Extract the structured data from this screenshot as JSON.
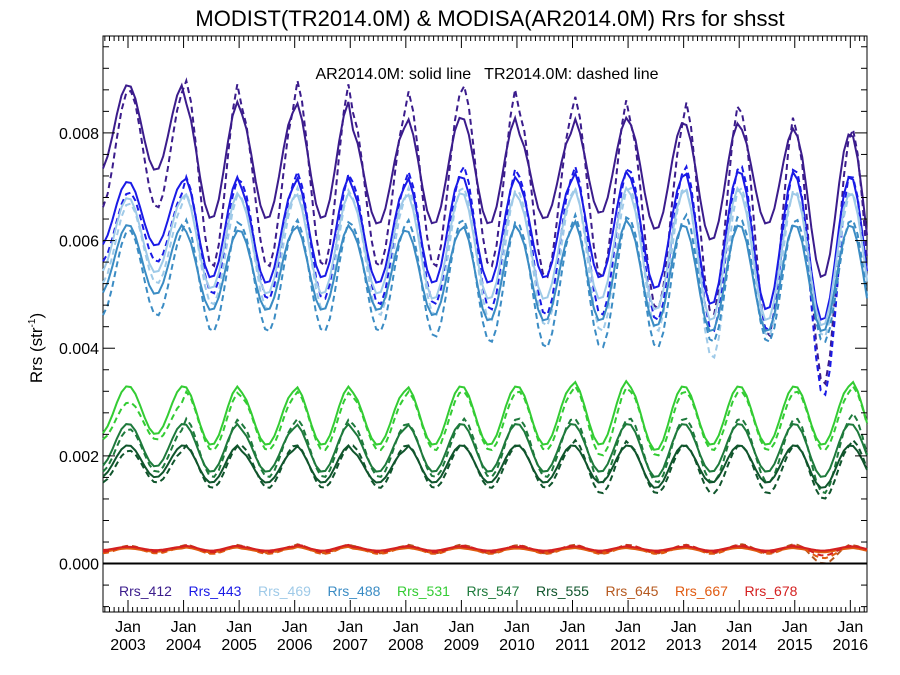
{
  "chart_data": {
    "type": "line",
    "title": "MODIST(TR2014.0M) & MODISA(AR2014.0M)  Rrs for shsst",
    "annotation": "AR2014.0M: solid line   TR2014.0M: dashed line",
    "ylabel": "Rrs (str",
    "ylabel_sup": "-1",
    "ylabel_close": ")",
    "ylim": [
      -0.0009,
      0.0098
    ],
    "xlim": [
      2002.55,
      2016.3
    ],
    "y_ticks": [
      "0.000",
      "0.002",
      "0.004",
      "0.006",
      "0.008"
    ],
    "x_ticks": [
      {
        "month": "Jan",
        "year": "2003"
      },
      {
        "month": "Jan",
        "year": "2004"
      },
      {
        "month": "Jan",
        "year": "2005"
      },
      {
        "month": "Jan",
        "year": "2006"
      },
      {
        "month": "Jan",
        "year": "2007"
      },
      {
        "month": "Jan",
        "year": "2008"
      },
      {
        "month": "Jan",
        "year": "2009"
      },
      {
        "month": "Jan",
        "year": "2010"
      },
      {
        "month": "Jan",
        "year": "2011"
      },
      {
        "month": "Jan",
        "year": "2012"
      },
      {
        "month": "Jan",
        "year": "2013"
      },
      {
        "month": "Jan",
        "year": "2014"
      },
      {
        "month": "Jan",
        "year": "2015"
      },
      {
        "month": "Jan",
        "year": "2016"
      }
    ],
    "series": [
      {
        "name": "Rrs_412",
        "color": "#3b1c8c",
        "aqua_peaks": [
          0.0089,
          0.0086,
          0.0084,
          0.0086,
          0.0081,
          0.0083,
          0.0083,
          0.008,
          0.0083,
          0.0082,
          0.0082,
          0.0081,
          0.008,
          0.008
        ],
        "aqua_troughs": [
          0.0073,
          0.0064,
          0.0064,
          0.0064,
          0.0063,
          0.0063,
          0.0063,
          0.0064,
          0.0065,
          0.0062,
          0.006,
          0.0063,
          0.0053,
          0.0051
        ],
        "terra_peaks": [
          0.0088,
          0.009,
          0.0085,
          0.009,
          0.0084,
          0.0088,
          0.0089,
          0.0084,
          0.0087,
          0.0082,
          0.0086,
          0.0084,
          0.008,
          0.0081
        ],
        "terra_troughs": [
          0.0066,
          0.0055,
          0.0055,
          0.0055,
          0.0055,
          0.0055,
          0.0055,
          0.0053,
          0.0053,
          0.0047,
          0.0046,
          0.0042,
          0.0033,
          0.004
        ]
      },
      {
        "name": "Rrs_443",
        "color": "#1a1ae6",
        "aqua_peaks": [
          0.0071,
          0.0072,
          0.007,
          0.0072,
          0.007,
          0.0072,
          0.0072,
          0.0071,
          0.0073,
          0.0072,
          0.0073,
          0.0073,
          0.0072,
          0.0072
        ],
        "aqua_troughs": [
          0.0059,
          0.0053,
          0.0052,
          0.0053,
          0.0052,
          0.0052,
          0.0052,
          0.0053,
          0.0053,
          0.0051,
          0.0048,
          0.0047,
          0.0045,
          0.0045
        ],
        "terra_peaks": [
          0.0069,
          0.0072,
          0.0071,
          0.0073,
          0.0071,
          0.0073,
          0.0074,
          0.0072,
          0.0074,
          0.0073,
          0.0074,
          0.0074,
          0.0073,
          0.0072
        ],
        "terra_troughs": [
          0.0056,
          0.005,
          0.0049,
          0.0049,
          0.0048,
          0.0048,
          0.0047,
          0.0046,
          0.0046,
          0.0045,
          0.0043,
          0.0043,
          0.0031,
          0.0039
        ]
      },
      {
        "name": "Rrs_469",
        "color": "#9fcae8",
        "aqua_peaks": [
          0.0068,
          0.0069,
          0.0068,
          0.0069,
          0.0068,
          0.0069,
          0.0069,
          0.0068,
          0.007,
          0.0069,
          0.007,
          0.0069,
          0.0069,
          0.0069
        ],
        "aqua_troughs": [
          0.0054,
          0.0051,
          0.005,
          0.005,
          0.005,
          0.0049,
          0.0049,
          0.0049,
          0.0049,
          0.0047,
          0.0045,
          0.0045,
          0.0044,
          0.0044
        ],
        "terra_peaks": [
          0.0067,
          0.0069,
          0.0068,
          0.007,
          0.0068,
          0.007,
          0.007,
          0.0069,
          0.007,
          0.007,
          0.007,
          0.007,
          0.0069,
          0.0069
        ],
        "terra_troughs": [
          0.0052,
          0.0048,
          0.0047,
          0.0047,
          0.0046,
          0.0046,
          0.0045,
          0.0044,
          0.0043,
          0.0043,
          0.0038,
          0.0042,
          0.0042,
          0.0041
        ]
      },
      {
        "name": "Rrs_488",
        "color": "#3b8cc4",
        "aqua_peaks": [
          0.0063,
          0.0062,
          0.0062,
          0.0063,
          0.0062,
          0.0062,
          0.0063,
          0.0062,
          0.0064,
          0.0063,
          0.0063,
          0.0063,
          0.0063,
          0.0063
        ],
        "aqua_troughs": [
          0.005,
          0.0047,
          0.0047,
          0.0047,
          0.0047,
          0.0046,
          0.0045,
          0.0045,
          0.0045,
          0.0044,
          0.0043,
          0.0043,
          0.0043,
          0.0042
        ],
        "terra_peaks": [
          0.0062,
          0.0064,
          0.0063,
          0.0064,
          0.0063,
          0.0064,
          0.0064,
          0.0063,
          0.0065,
          0.0064,
          0.0065,
          0.0064,
          0.0064,
          0.0064
        ],
        "terra_troughs": [
          0.0046,
          0.0043,
          0.0043,
          0.0043,
          0.0043,
          0.0042,
          0.0041,
          0.004,
          0.004,
          0.004,
          0.0041,
          0.0041,
          0.0041,
          0.004
        ]
      },
      {
        "name": "Rrs_531",
        "color": "#33cc33",
        "aqua_peaks": [
          0.0033,
          0.0033,
          0.0032,
          0.0033,
          0.0032,
          0.0033,
          0.0033,
          0.0033,
          0.0034,
          0.0033,
          0.0033,
          0.0033,
          0.0033,
          0.0034
        ],
        "aqua_troughs": [
          0.0024,
          0.0022,
          0.0022,
          0.0022,
          0.0022,
          0.0022,
          0.0022,
          0.0022,
          0.0022,
          0.0021,
          0.0022,
          0.0022,
          0.0022,
          0.0022
        ],
        "terra_peaks": [
          0.003,
          0.0032,
          0.0031,
          0.0032,
          0.0031,
          0.0032,
          0.0032,
          0.0032,
          0.0033,
          0.0032,
          0.0032,
          0.0032,
          0.0032,
          0.0033
        ],
        "terra_troughs": [
          0.0023,
          0.0021,
          0.0021,
          0.0021,
          0.0021,
          0.0021,
          0.0021,
          0.0021,
          0.002,
          0.002,
          0.0021,
          0.0021,
          0.0021,
          0.0021
        ]
      },
      {
        "name": "Rrs_547",
        "color": "#1e7a3c",
        "aqua_peaks": [
          0.0026,
          0.0026,
          0.0025,
          0.0026,
          0.0025,
          0.0026,
          0.0026,
          0.0026,
          0.0026,
          0.0026,
          0.0026,
          0.0026,
          0.0026,
          0.0026
        ],
        "aqua_troughs": [
          0.0018,
          0.0017,
          0.0017,
          0.0017,
          0.0017,
          0.0017,
          0.0017,
          0.0017,
          0.0017,
          0.0016,
          0.0017,
          0.0017,
          0.0016,
          0.0017
        ],
        "terra_peaks": [
          0.0025,
          0.0027,
          0.0026,
          0.0027,
          0.0026,
          0.0026,
          0.0027,
          0.0027,
          0.0027,
          0.0027,
          0.0027,
          0.0027,
          0.0027,
          0.0028
        ],
        "terra_troughs": [
          0.0017,
          0.0016,
          0.0016,
          0.0016,
          0.0016,
          0.0016,
          0.0016,
          0.0016,
          0.0015,
          0.0015,
          0.0015,
          0.0015,
          0.0013,
          0.0015
        ]
      },
      {
        "name": "Rrs_555",
        "color": "#10552c",
        "aqua_peaks": [
          0.0022,
          0.0022,
          0.0021,
          0.0022,
          0.0021,
          0.0022,
          0.0022,
          0.0022,
          0.0022,
          0.0022,
          0.0022,
          0.0022,
          0.0022,
          0.0022
        ],
        "aqua_troughs": [
          0.0016,
          0.0015,
          0.0015,
          0.0015,
          0.0015,
          0.0015,
          0.0015,
          0.0015,
          0.0015,
          0.0014,
          0.0015,
          0.0015,
          0.0014,
          0.0015
        ],
        "terra_peaks": [
          0.0021,
          0.0022,
          0.0022,
          0.0022,
          0.0022,
          0.0022,
          0.0022,
          0.0022,
          0.0023,
          0.0022,
          0.0022,
          0.0022,
          0.0022,
          0.0023
        ],
        "terra_troughs": [
          0.0015,
          0.0014,
          0.0014,
          0.0014,
          0.0014,
          0.0014,
          0.0014,
          0.0014,
          0.0013,
          0.0013,
          0.0013,
          0.0013,
          0.0012,
          0.0014
        ]
      },
      {
        "name": "Rrs_645",
        "color": "#b5581e",
        "aqua_peaks": [
          0.0003,
          0.00032,
          0.0003,
          0.00033,
          0.0003,
          0.00031,
          0.0003,
          0.0003,
          0.00031,
          0.0003,
          0.00031,
          0.00031,
          0.0003,
          0.00031
        ],
        "aqua_troughs": [
          0.00024,
          0.00023,
          0.00023,
          0.00023,
          0.00023,
          0.00023,
          0.00023,
          0.00023,
          0.00023,
          0.00023,
          0.00023,
          0.00023,
          0.00023,
          0.00023
        ],
        "terra_peaks": [
          0.00033,
          0.00035,
          0.00033,
          0.00036,
          0.00033,
          0.00035,
          0.00034,
          0.00034,
          0.00035,
          0.00034,
          0.00035,
          0.00036,
          0.00035,
          0.00034
        ],
        "terra_troughs": [
          0.0002,
          0.00019,
          0.00019,
          0.00019,
          0.00019,
          0.00019,
          0.00019,
          0.00019,
          0.00019,
          0.00019,
          0.00019,
          0.00019,
          0.0,
          0.00019
        ]
      },
      {
        "name": "Rrs_667",
        "color": "#e05a10",
        "aqua_peaks": [
          0.00028,
          0.0003,
          0.00028,
          0.00031,
          0.00028,
          0.00029,
          0.00028,
          0.00028,
          0.00029,
          0.00028,
          0.00029,
          0.00029,
          0.00028,
          0.00029
        ],
        "aqua_troughs": [
          0.00022,
          0.00021,
          0.00021,
          0.00021,
          0.00021,
          0.00021,
          0.00021,
          0.00021,
          0.00021,
          0.00021,
          0.00021,
          0.00021,
          0.00021,
          0.00021
        ],
        "terra_peaks": [
          0.0003,
          0.00032,
          0.0003,
          0.00033,
          0.0003,
          0.00032,
          0.00031,
          0.00031,
          0.00032,
          0.00031,
          0.00032,
          0.00033,
          0.00032,
          0.00031
        ],
        "terra_troughs": [
          0.00019,
          0.00018,
          0.00018,
          0.00018,
          0.00018,
          0.00018,
          0.00018,
          0.00018,
          0.00018,
          0.00018,
          0.00018,
          0.00018,
          0.0001,
          0.00018
        ]
      },
      {
        "name": "Rrs_678",
        "color": "#d42020",
        "aqua_peaks": [
          0.00031,
          0.00033,
          0.00031,
          0.00034,
          0.00031,
          0.00032,
          0.00031,
          0.00031,
          0.00032,
          0.00031,
          0.00032,
          0.00032,
          0.00031,
          0.00032
        ],
        "aqua_troughs": [
          0.00025,
          0.00024,
          0.00024,
          0.00024,
          0.00024,
          0.00024,
          0.00024,
          0.00024,
          0.00024,
          0.00024,
          0.00024,
          0.00024,
          0.00024,
          0.00024
        ],
        "terra_peaks": [
          0.00032,
          0.00034,
          0.00032,
          0.00035,
          0.00032,
          0.00033,
          0.00033,
          0.00033,
          0.00034,
          0.00033,
          0.00034,
          0.00034,
          0.00033,
          0.00033
        ],
        "terra_troughs": [
          0.00022,
          0.00021,
          0.00021,
          0.00021,
          0.00021,
          0.00021,
          0.00021,
          0.00021,
          0.00021,
          0.00021,
          0.00021,
          0.00021,
          0.00015,
          0.00021
        ]
      }
    ],
    "zero_line": true,
    "grid": false
  }
}
